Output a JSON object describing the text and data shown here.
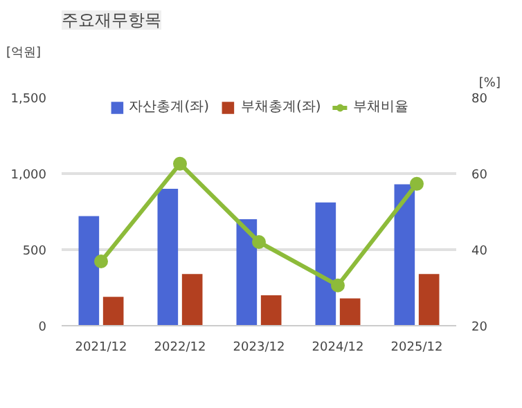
{
  "chart_data": {
    "type": "bar",
    "title": "주요재무항목",
    "xlabel": null,
    "ylabel": "[억원]",
    "y2label": "[%]",
    "categories": [
      "2021/12",
      "2022/12",
      "2023/12",
      "2024/12",
      "2025/12"
    ],
    "series": [
      {
        "name": "자산총계(좌)",
        "color": "#4a67d6",
        "values": [
          720,
          900,
          700,
          810,
          930
        ]
      },
      {
        "name": "부채총계(좌)",
        "color": "#b34020",
        "values": [
          190,
          340,
          200,
          180,
          340
        ]
      },
      {
        "name": "부채비율",
        "type": "line",
        "axis": "y2",
        "color": "#8dbb3a",
        "values": [
          36.9,
          62.6,
          42.0,
          30.6,
          57.3
        ]
      }
    ],
    "ylim": [
      0,
      1500
    ],
    "yticks": [
      0,
      500,
      {
        "value": 1000,
        "label": "1,000"
      },
      {
        "value": 1500,
        "label": "1,500"
      }
    ],
    "y2lim": [
      20,
      80
    ],
    "y2ticks": [
      20,
      40,
      60,
      80
    ],
    "grid": "y",
    "legend": "top",
    "marker": "circle",
    "line_style": "solid"
  }
}
